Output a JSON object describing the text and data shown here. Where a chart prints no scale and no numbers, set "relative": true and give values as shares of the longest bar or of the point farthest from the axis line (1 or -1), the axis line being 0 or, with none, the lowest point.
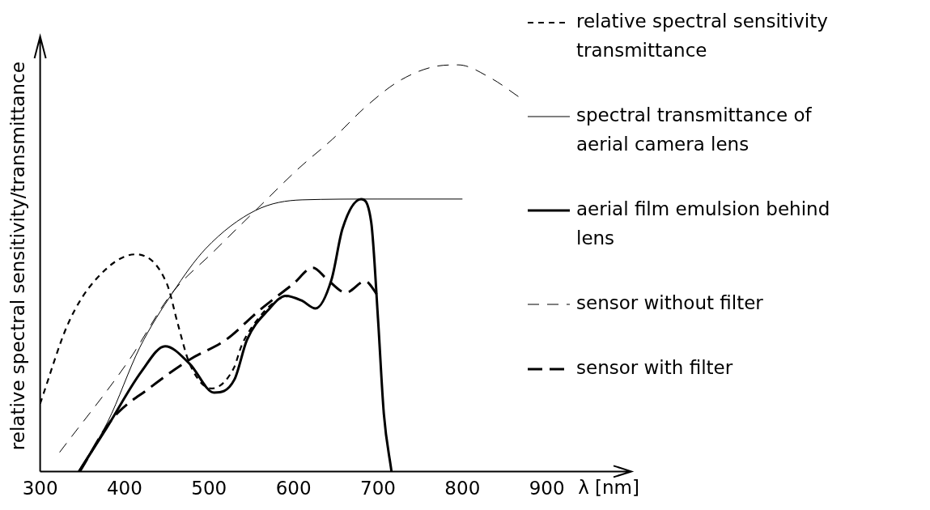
{
  "chart_data": {
    "type": "line",
    "relative": true,
    "xlabel": "λ [nm]",
    "ylabel": "relative spectral sensitivity/transmittance",
    "xlim": [
      300,
      1000
    ],
    "xticks": [
      300,
      400,
      500,
      600,
      700,
      800,
      900
    ],
    "legend": "top right",
    "marker": "none",
    "grid": false,
    "series": [
      {
        "name": "relative spectral sensitivity transmittance",
        "color": "#000000",
        "line_style": "dashed",
        "x": [
          300,
          333,
          365,
          413,
          450,
          463,
          477,
          503,
          529,
          539,
          561,
          581,
          594
        ],
        "values": [
          0.167,
          0.363,
          0.47,
          0.534,
          0.462,
          0.363,
          0.265,
          0.204,
          0.253,
          0.312,
          0.383,
          0.422,
          0.432
        ]
      },
      {
        "name": "spectral transmittance of aerial camera lens",
        "color": "#000000",
        "line_style": "solid",
        "x": [
          345,
          380,
          418,
          457,
          496,
          555,
          610,
          700,
          800
        ],
        "values": [
          0,
          0.122,
          0.305,
          0.44,
          0.548,
          0.642,
          0.668,
          0.67,
          0.67
        ]
      },
      {
        "name": "aerial film emulsion behind lens",
        "color": "#000000",
        "line_style": "solid",
        "x": [
          346,
          379,
          420,
          448,
          477,
          506,
          530,
          545,
          570,
          591,
          610,
          626,
          645,
          658,
          680,
          692,
          700,
          707,
          716
        ],
        "values": [
          0,
          0.108,
          0.246,
          0.308,
          0.265,
          0.194,
          0.226,
          0.324,
          0.397,
          0.432,
          0.42,
          0.401,
          0.472,
          0.597,
          0.67,
          0.613,
          0.377,
          0.141,
          0
        ]
      },
      {
        "name": "sensor without filter",
        "color": "#000000",
        "line_style": "dashed",
        "x": [
          323,
          405,
          455,
          505,
          555,
          607,
          646,
          685,
          724,
          763,
          795,
          834,
          867
        ],
        "values": [
          0.047,
          0.273,
          0.436,
          0.54,
          0.642,
          0.747,
          0.817,
          0.896,
          0.959,
          0.994,
          1,
          0.967,
          0.921
        ]
      },
      {
        "name": "sensor with filter",
        "color": "#000000",
        "line_style": "dashed",
        "x": [
          347,
          385,
          430,
          477,
          520,
          560,
          600,
          623,
          640,
          662,
          685,
          700
        ],
        "values": [
          0,
          0.128,
          0.206,
          0.275,
          0.324,
          0.397,
          0.462,
          0.501,
          0.472,
          0.44,
          0.468,
          0.432
        ]
      }
    ]
  }
}
